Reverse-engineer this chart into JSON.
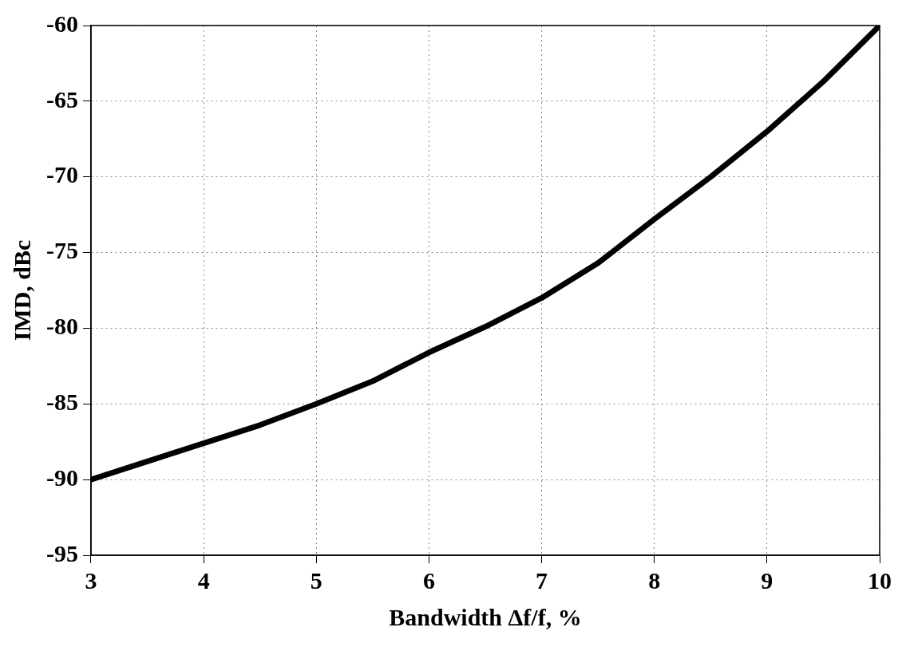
{
  "chart_data": {
    "type": "line",
    "xlabel": "Bandwidth Δf/f, %",
    "ylabel": "IMD, dBc",
    "series": [
      {
        "color": "#000000",
        "x": [
          3,
          3.5,
          4,
          4.5,
          5,
          5.5,
          6,
          6.5,
          7,
          7.5,
          8,
          8.5,
          9,
          9.5,
          10
        ],
        "values": [
          -90,
          -88.8,
          -87.6,
          -86.4,
          -85,
          -83.5,
          -81.6,
          -79.9,
          -78,
          -75.7,
          -72.8,
          -70,
          -67,
          -63.7,
          -60
        ]
      }
    ],
    "xlim": [
      3,
      10
    ],
    "xticks": [
      3,
      4,
      5,
      6,
      7,
      8,
      9,
      10
    ],
    "ylim": [
      -95,
      -60
    ],
    "yticks": [
      -95,
      -90,
      -85,
      -80,
      -75,
      -70,
      -65,
      -60
    ],
    "grid": true,
    "legend": false,
    "marker": "none",
    "line_style": "solid"
  }
}
